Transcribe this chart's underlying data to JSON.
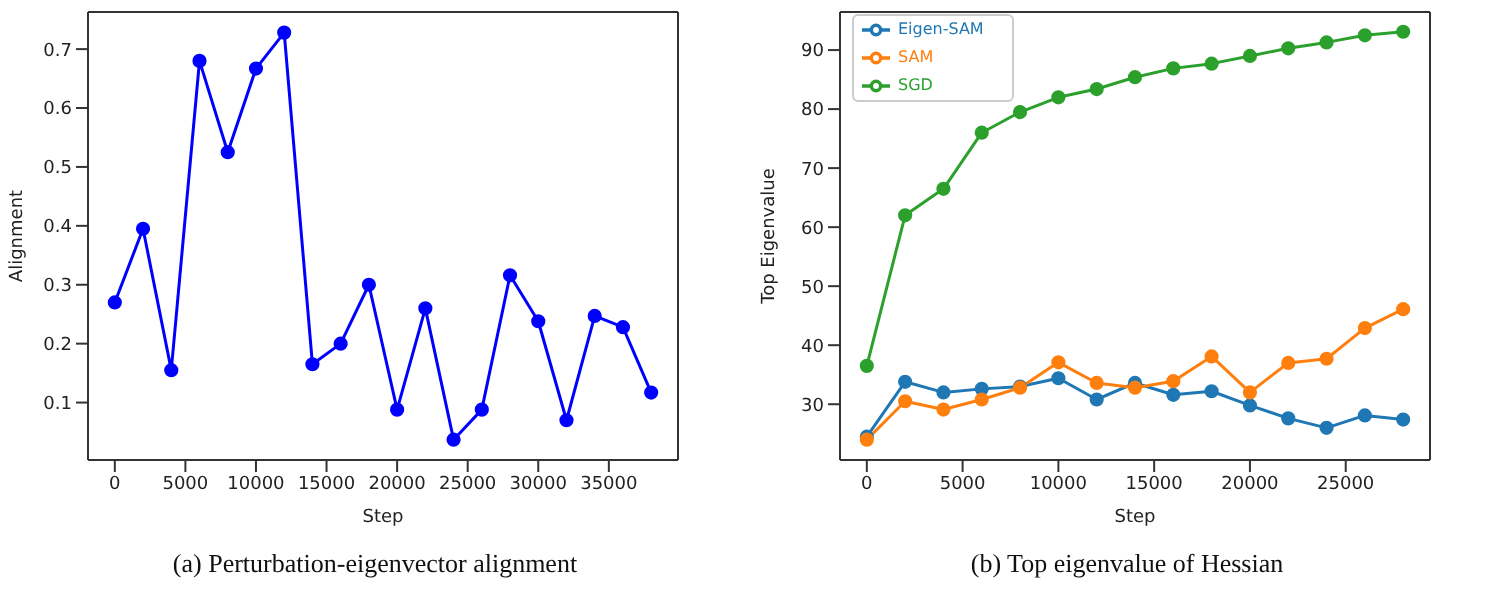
{
  "chart_data": [
    {
      "type": "line",
      "xlabel": "Step",
      "ylabel": "Alignment",
      "annotations": [
        "(a) Perturbation-eigenvector alignment"
      ],
      "x": [
        0,
        2000,
        4000,
        6000,
        8000,
        10000,
        12000,
        14000,
        16000,
        18000,
        20000,
        22000,
        24000,
        26000,
        28000,
        30000,
        32000,
        34000,
        36000,
        38000
      ],
      "series": [
        {
          "color": "#0000ff",
          "values": [
            0.27,
            0.395,
            0.155,
            0.68,
            0.525,
            0.667,
            0.728,
            0.165,
            0.2,
            0.3,
            0.088,
            0.26,
            0.037,
            0.088,
            0.316,
            0.238,
            0.07,
            0.247,
            0.228,
            0.117
          ]
        }
      ],
      "xlim": [
        -1900,
        39900
      ],
      "xticks": [
        0,
        5000,
        10000,
        15000,
        20000,
        25000,
        30000,
        35000
      ],
      "ylim": [
        0.0025,
        0.763
      ],
      "yticks": [
        0.1,
        0.2,
        0.3,
        0.4,
        0.5,
        0.6,
        0.7
      ],
      "grid": false,
      "legend": false,
      "marker": "circle",
      "line_style": "solid"
    },
    {
      "type": "line",
      "xlabel": "Step",
      "ylabel": "Top Eigenvalue",
      "annotations": [
        "(b) Top eigenvalue of Hessian"
      ],
      "x": [
        0,
        2000,
        4000,
        6000,
        8000,
        10000,
        12000,
        14000,
        16000,
        18000,
        20000,
        22000,
        24000,
        26000,
        28000
      ],
      "series": [
        {
          "name": "Eigen-SAM",
          "color": "#1f77b4",
          "values": [
            24.5,
            33.8,
            32,
            32.6,
            33,
            34.4,
            30.8,
            33.6,
            31.6,
            32.2,
            29.8,
            27.6,
            26,
            28.1,
            27.4
          ]
        },
        {
          "name": "SAM",
          "color": "#ff7f0e",
          "values": [
            24,
            30.5,
            29.1,
            30.8,
            32.8,
            37.1,
            33.6,
            32.8,
            33.9,
            38.1,
            32,
            37,
            37.7,
            42.9,
            46.1
          ]
        },
        {
          "name": "SGD",
          "color": "#2ca02c",
          "values": [
            36.5,
            62,
            66.5,
            76,
            79.5,
            82,
            83.4,
            85.4,
            86.9,
            87.7,
            89,
            90.3,
            91.3,
            92.5,
            93.1
          ]
        }
      ],
      "xlim": [
        -1400,
        29400
      ],
      "xticks": [
        0,
        5000,
        10000,
        15000,
        20000,
        25000
      ],
      "ylim": [
        20.55,
        96.45
      ],
      "yticks": [
        30,
        40,
        50,
        60,
        70,
        80,
        90
      ],
      "grid": false,
      "legend": "top left",
      "marker": "circle",
      "line_style": "solid"
    }
  ]
}
